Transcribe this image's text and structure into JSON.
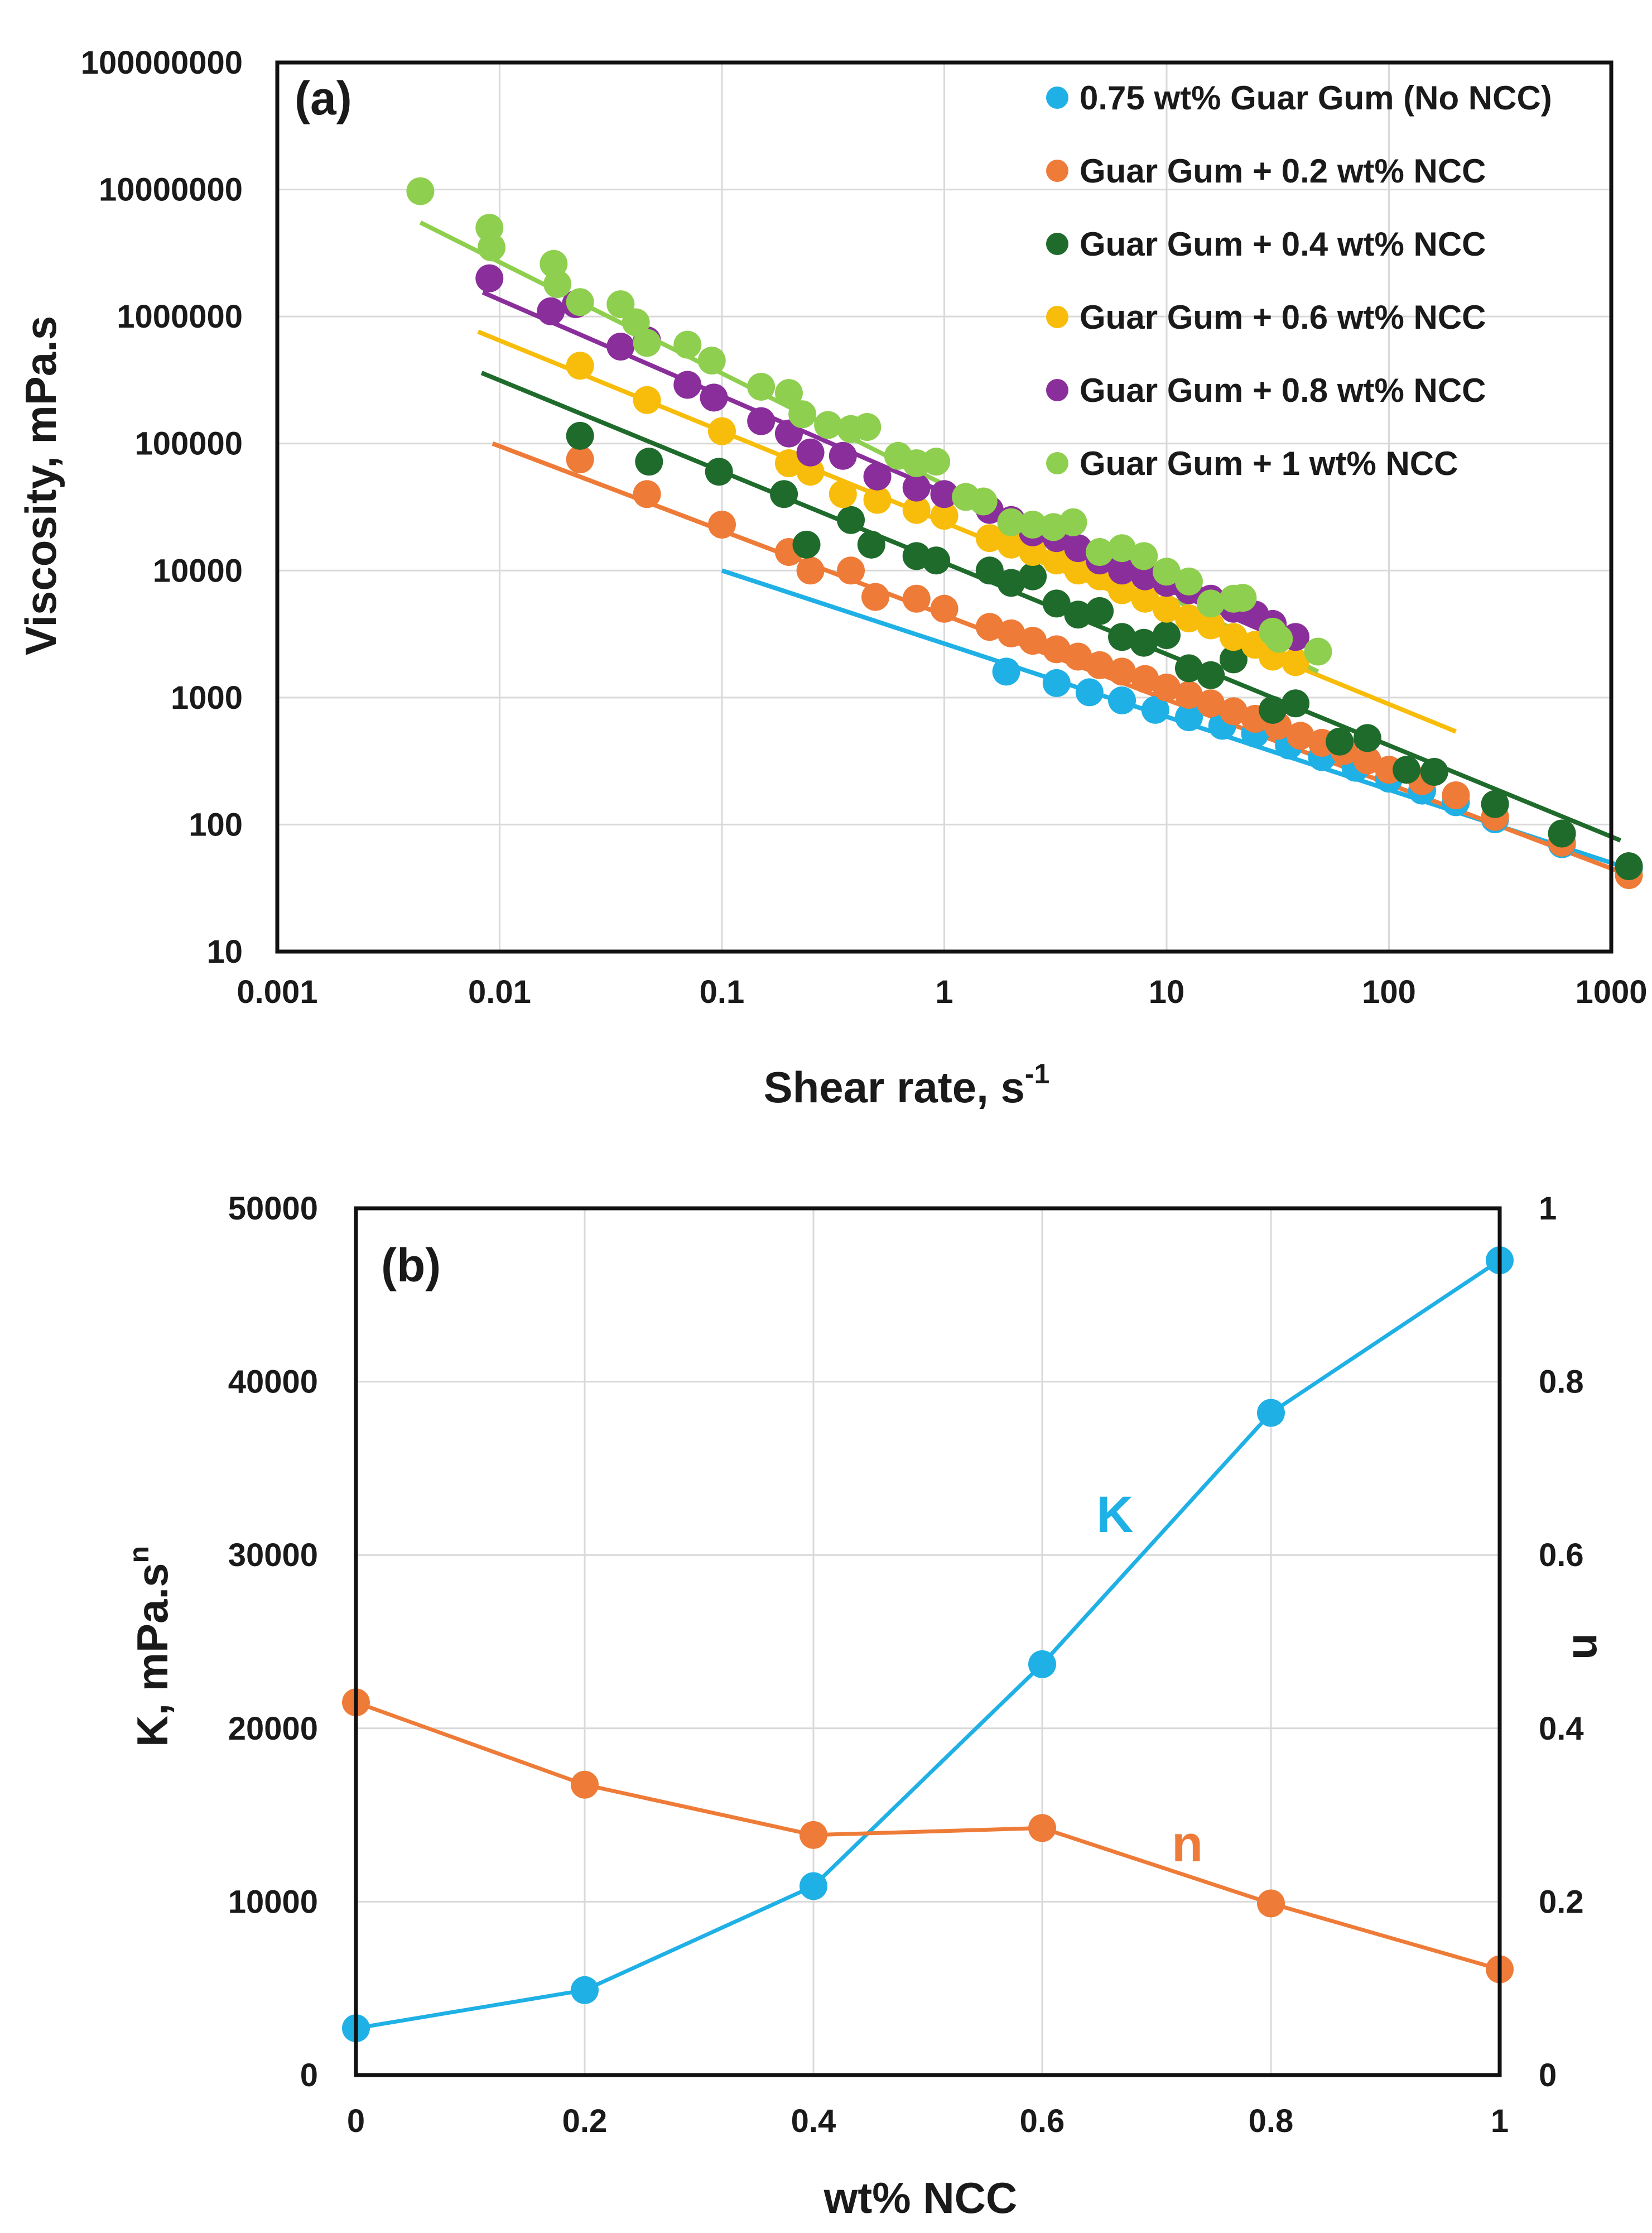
{
  "chart_data": [
    {
      "type": "scatter",
      "panel_label": "(a)",
      "xlabel": "Shear rate, s",
      "xlabel_superscript": "-1",
      "ylabel": "Viscosity, mPa.s",
      "xscale": "log",
      "yscale": "log",
      "xlim": [
        0.001,
        1000
      ],
      "ylim": [
        10,
        100000000
      ],
      "x_ticks": [
        "0.001",
        "0.01",
        "0.1",
        "1",
        "10",
        "100",
        "1000"
      ],
      "y_ticks": [
        "10",
        "100",
        "1000",
        "10000",
        "100000",
        "1000000",
        "10000000",
        "100000000"
      ],
      "grid": true,
      "legend_position": "top-right",
      "series": [
        {
          "name": "0.75 wt% Guar Gum (No NCC)",
          "color": "#1fb0e6",
          "points": [
            [
              1.9,
              1600
            ],
            [
              3.2,
              1300
            ],
            [
              4.5,
              1100
            ],
            [
              6.3,
              950
            ],
            [
              8.9,
              800
            ],
            [
              12.6,
              700
            ],
            [
              17.8,
              600
            ],
            [
              25,
              520
            ],
            [
              35.5,
              420
            ],
            [
              50,
              340
            ],
            [
              70.8,
              280
            ],
            [
              100,
              230
            ],
            [
              141,
              185
            ],
            [
              200,
              150
            ],
            [
              300,
              110
            ],
            [
              600,
              70
            ],
            [
              1200,
              45
            ]
          ],
          "fit": {
            "x": [
              0.1,
              1200
            ],
            "y": [
              10000,
              45
            ]
          }
        },
        {
          "name": "Guar Gum + 0.2 wt% NCC",
          "color": "#ee7b38",
          "points": [
            [
              0.023,
              75000
            ],
            [
              0.046,
              40000
            ],
            [
              0.1,
              23000
            ],
            [
              0.2,
              14000
            ],
            [
              0.25,
              10000
            ],
            [
              0.38,
              10000
            ],
            [
              0.49,
              6200
            ],
            [
              0.75,
              6000
            ],
            [
              1.0,
              5000
            ],
            [
              1.6,
              3600
            ],
            [
              2.0,
              3200
            ],
            [
              2.5,
              2800
            ],
            [
              3.2,
              2400
            ],
            [
              4.0,
              2100
            ],
            [
              5.0,
              1800
            ],
            [
              6.3,
              1600
            ],
            [
              8.0,
              1400
            ],
            [
              10,
              1200
            ],
            [
              12.6,
              1050
            ],
            [
              15.8,
              900
            ],
            [
              20,
              780
            ],
            [
              25,
              680
            ],
            [
              31.6,
              600
            ],
            [
              40,
              500
            ],
            [
              50,
              440
            ],
            [
              63,
              380
            ],
            [
              80,
              320
            ],
            [
              100,
              270
            ],
            [
              141,
              220
            ],
            [
              200,
              170
            ],
            [
              300,
              115
            ],
            [
              600,
              72
            ],
            [
              1200,
              40
            ]
          ],
          "fit": {
            "x": [
              0.0093,
              1200
            ],
            "y": [
              100000,
              40
            ]
          }
        },
        {
          "name": "Guar Gum + 0.4 wt% NCC",
          "color": "#1f6b2c",
          "points": [
            [
              0.023,
              115000
            ],
            [
              0.047,
              72000
            ],
            [
              0.097,
              60000
            ],
            [
              0.19,
              40000
            ],
            [
              0.24,
              16000
            ],
            [
              0.38,
              25000
            ],
            [
              0.47,
              16000
            ],
            [
              0.75,
              13000
            ],
            [
              0.92,
              12000
            ],
            [
              1.6,
              10000
            ],
            [
              2.0,
              8000
            ],
            [
              2.5,
              9000
            ],
            [
              3.2,
              5500
            ],
            [
              4.0,
              4500
            ],
            [
              5.0,
              4800
            ],
            [
              6.3,
              3000
            ],
            [
              7.9,
              2700
            ],
            [
              10,
              3100
            ],
            [
              12.6,
              1700
            ],
            [
              15.8,
              1500
            ],
            [
              20,
              2000
            ],
            [
              30,
              800
            ],
            [
              38,
              900
            ],
            [
              60,
              450
            ],
            [
              80,
              480
            ],
            [
              120,
              270
            ],
            [
              160,
              260
            ],
            [
              300,
              145
            ],
            [
              600,
              85
            ],
            [
              1200,
              47
            ]
          ],
          "fit": {
            "x": [
              0.0083,
              1100
            ],
            "y": [
              360000,
              75
            ]
          }
        },
        {
          "name": "Guar Gum + 0.6 wt% NCC",
          "color": "#f7bd0a",
          "points": [
            [
              0.023,
              410000
            ],
            [
              0.046,
              220000
            ],
            [
              0.1,
              125000
            ],
            [
              0.2,
              70000
            ],
            [
              0.25,
              60000
            ],
            [
              0.35,
              40000
            ],
            [
              0.5,
              36000
            ],
            [
              0.75,
              30000
            ],
            [
              1.0,
              27000
            ],
            [
              1.6,
              18000
            ],
            [
              2.0,
              16000
            ],
            [
              2.5,
              14000
            ],
            [
              3.2,
              12000
            ],
            [
              4.0,
              10000
            ],
            [
              5.0,
              9000
            ],
            [
              6.3,
              7000
            ],
            [
              8.0,
              6000
            ],
            [
              10,
              5000
            ],
            [
              12.6,
              4200
            ],
            [
              15.8,
              3700
            ],
            [
              20,
              3000
            ],
            [
              25,
              2600
            ],
            [
              30,
              2100
            ],
            [
              38,
              1900
            ]
          ],
          "fit": {
            "x": [
              0.008,
              200
            ],
            "y": [
              760000,
              540
            ]
          }
        },
        {
          "name": "Guar Gum + 0.8 wt% NCC",
          "color": "#8a2e9b",
          "points": [
            [
              0.009,
              2000000
            ],
            [
              0.017,
              1100000
            ],
            [
              0.022,
              1250000
            ],
            [
              0.035,
              580000
            ],
            [
              0.046,
              650000
            ],
            [
              0.07,
              290000
            ],
            [
              0.092,
              230000
            ],
            [
              0.15,
              150000
            ],
            [
              0.2,
              120000
            ],
            [
              0.25,
              85000
            ],
            [
              0.35,
              80000
            ],
            [
              0.5,
              55000
            ],
            [
              0.75,
              45000
            ],
            [
              1.0,
              40000
            ],
            [
              1.6,
              30000
            ],
            [
              2.0,
              25000
            ],
            [
              2.5,
              20000
            ],
            [
              3.2,
              18000
            ],
            [
              4.0,
              15000
            ],
            [
              5.0,
              12000
            ],
            [
              6.3,
              10000
            ],
            [
              8.0,
              9000
            ],
            [
              10,
              8000
            ],
            [
              12.6,
              7000
            ],
            [
              15.8,
              6000
            ],
            [
              20,
              5000
            ],
            [
              25,
              4500
            ],
            [
              30,
              3800
            ],
            [
              38,
              3000
            ]
          ],
          "fit": {
            "x": [
              0.0084,
              40
            ],
            "y": [
              1550000,
              2500
            ]
          }
        },
        {
          "name": "Guar Gum + 1 wt% NCC",
          "color": "#8fcf50",
          "points": [
            [
              0.0044,
              9700000
            ],
            [
              0.009,
              5000000
            ],
            [
              0.0092,
              3500000
            ],
            [
              0.0175,
              2600000
            ],
            [
              0.0182,
              1800000
            ],
            [
              0.023,
              1300000
            ],
            [
              0.035,
              1250000
            ],
            [
              0.041,
              900000
            ],
            [
              0.046,
              620000
            ],
            [
              0.07,
              600000
            ],
            [
              0.09,
              450000
            ],
            [
              0.15,
              280000
            ],
            [
              0.2,
              250000
            ],
            [
              0.23,
              170000
            ],
            [
              0.3,
              140000
            ],
            [
              0.38,
              130000
            ],
            [
              0.45,
              135000
            ],
            [
              0.62,
              80000
            ],
            [
              0.75,
              70000
            ],
            [
              0.92,
              72000
            ],
            [
              1.25,
              38000
            ],
            [
              1.5,
              35000
            ],
            [
              2.0,
              24000
            ],
            [
              2.5,
              23000
            ],
            [
              3.1,
              22000
            ],
            [
              3.8,
              24000
            ],
            [
              5.0,
              14000
            ],
            [
              6.3,
              15000
            ],
            [
              7.9,
              13000
            ],
            [
              10,
              9800
            ],
            [
              12.6,
              8200
            ],
            [
              15.8,
              5500
            ],
            [
              20,
              6000
            ],
            [
              22,
              6100
            ],
            [
              30,
              3300
            ],
            [
              32,
              2900
            ],
            [
              48,
              2300
            ]
          ],
          "fit": {
            "x": [
              0.0044,
              48
            ],
            "y": [
              5500000,
              1600
            ]
          }
        }
      ]
    },
    {
      "type": "line",
      "panel_label": "(b)",
      "xlabel": "wt% NCC",
      "ylabel": "K, mPa.s",
      "ylabel_superscript": "n",
      "y2label": "n",
      "x": [
        0,
        0.2,
        0.4,
        0.6,
        0.8,
        1
      ],
      "xlim": [
        0,
        1
      ],
      "ylim": [
        0,
        50000
      ],
      "y2lim": [
        0,
        1
      ],
      "x_ticks": [
        "0",
        "0.2",
        "0.4",
        "0.6",
        "0.8",
        "1"
      ],
      "y_ticks": [
        "0",
        "10000",
        "20000",
        "30000",
        "40000",
        "50000"
      ],
      "y2_ticks": [
        "0",
        "0.2",
        "0.4",
        "0.6",
        "0.8",
        "1"
      ],
      "grid": true,
      "series": [
        {
          "name": "K",
          "axis": "left",
          "color": "#1fb0e6",
          "values": [
            2700,
            4900,
            10900,
            23700,
            38200,
            47000
          ]
        },
        {
          "name": "n",
          "axis": "right",
          "color": "#ee7b38",
          "values": [
            0.43,
            0.335,
            0.277,
            0.285,
            0.198,
            0.122
          ]
        }
      ]
    }
  ]
}
